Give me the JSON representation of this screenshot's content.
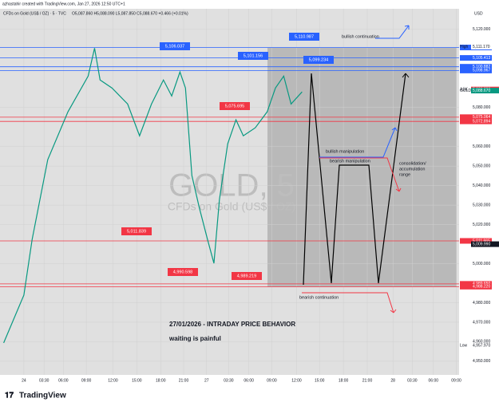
{
  "header": {
    "credit": "azhastahir created with TradingView.com, Jan 27, 2026 12:50 UTC+1",
    "symbol": "CFDs on Gold (US$ / OZ) · 5 · TVC",
    "ohlc": "O5,087.860 H5,088.090 L5,087.850 C5,088.670 +0.466 (+0.01%)",
    "currency": "USD",
    "brand": "TradingView"
  },
  "watermark": {
    "title": "GOLD, 5",
    "subtitle": "CFDs on Gold (US$ / OZ)"
  },
  "annotations": {
    "boxes": [
      "5,106.037",
      "5,110.987",
      "5,101.156",
      "5,099.234",
      "5,075.695",
      "5,011.839",
      "4,990.598",
      "4,989.219"
    ],
    "texts": [
      "bullish continuation",
      "bullish manipulation",
      "bearish manipulation",
      "consolidation/",
      "accumulation",
      "range",
      "bearish continuation",
      "27/01/2026 - INTRADAY PRICE BEHAVIOR",
      "waiting is painful"
    ]
  },
  "chart_data": {
    "type": "line",
    "color": "#089981",
    "x": [
      4,
      26,
      35,
      52,
      74,
      96,
      103,
      109,
      122,
      139,
      152,
      165,
      178,
      187,
      196,
      202,
      209,
      217,
      226,
      233,
      239,
      248,
      257,
      265,
      278,
      291,
      300,
      309,
      317,
      329
    ],
    "values": [
      4959.4,
      4983.9,
      5012.4,
      5053.3,
      5077.8,
      5096.1,
      5110.4,
      5094.1,
      5090.0,
      5081.8,
      5065.5,
      5081.8,
      5094.1,
      5085.9,
      5098.2,
      5090.0,
      5045.1,
      5028.8,
      5012.4,
      5000.2,
      5032.9,
      5061.4,
      5073.7,
      5065.5,
      5069.6,
      5077.8,
      5090.0,
      5096.1,
      5081.8,
      5088.0
    ],
    "xlim": [
      0,
      500
    ],
    "ylim": [
      4943,
      5131
    ],
    "xticks": [
      {
        "value": 26,
        "label": "24"
      },
      {
        "value": 48,
        "label": "03:30"
      },
      {
        "value": 69,
        "label": "06:00"
      },
      {
        "value": 94,
        "label": "09:00"
      },
      {
        "value": 123,
        "label": "12:00"
      },
      {
        "value": 149,
        "label": "15:00"
      },
      {
        "value": 175,
        "label": "18:00"
      },
      {
        "value": 200,
        "label": "21:00"
      },
      {
        "value": 225,
        "label": "27"
      },
      {
        "value": 249,
        "label": "03:30"
      },
      {
        "value": 271,
        "label": "06:00"
      },
      {
        "value": 296,
        "label": "09:00"
      },
      {
        "value": 323,
        "label": "12:00"
      },
      {
        "value": 348,
        "label": "15:00"
      },
      {
        "value": 374,
        "label": "18:00"
      },
      {
        "value": 400,
        "label": "21:00"
      },
      {
        "value": 428,
        "label": "28"
      },
      {
        "value": 449,
        "label": "03:30"
      },
      {
        "value": 472,
        "label": "06:00"
      },
      {
        "value": 497,
        "label": "09:00"
      }
    ],
    "yticks": [
      {
        "value": 5120,
        "label": "5,120.000"
      },
      {
        "value": 5080,
        "label": "5,080.000"
      },
      {
        "value": 5060,
        "label": "5,060.000"
      },
      {
        "value": 5050,
        "label": "5,050.000"
      },
      {
        "value": 5040,
        "label": "5,040.000"
      },
      {
        "value": 5030,
        "label": "5,030.000"
      },
      {
        "value": 5020,
        "label": "5,020.000"
      },
      {
        "value": 5000,
        "label": "5,000.000"
      },
      {
        "value": 4980,
        "label": "4,980.000"
      },
      {
        "value": 4970,
        "label": "4,970.000"
      },
      {
        "value": 4960,
        "label": "4,960.000"
      },
      {
        "value": 4950,
        "label": "4,950.000"
      }
    ],
    "grid": true,
    "levels": [
      {
        "value": 5110.762,
        "label": "5,110.762",
        "color": "#2962ff"
      },
      {
        "value": 5105.413,
        "label": "5,105.413",
        "color": "#2962ff"
      },
      {
        "value": 5100.882,
        "label": "5,100.882",
        "color": "#2962ff"
      },
      {
        "value": 5098.967,
        "label": "5,098.967",
        "color": "#2962ff"
      },
      {
        "value": 5075.064,
        "label": "5,075.064",
        "color": "#f23645"
      },
      {
        "value": 5072.894,
        "label": "5,072.894",
        "color": "#f23645"
      },
      {
        "value": 5011.665,
        "label": "5,011.665",
        "color": "#f23645"
      },
      {
        "value": 4989.65,
        "label": "4,989.650",
        "color": "#f23645"
      },
      {
        "value": 4988.22,
        "label": "4,988.220",
        "color": "#f23645"
      }
    ],
    "markers": [
      {
        "value": 5111.17,
        "label": "5,111.170",
        "tag": "High",
        "color": "#ffffff"
      },
      {
        "value": 5089.23,
        "label": "5,089.230",
        "tag": "ASK",
        "color": "#f23645"
      },
      {
        "value": 5088.67,
        "label": "5,088.670",
        "tag": "GOLD",
        "color": "#089981"
      },
      {
        "value": 5009.99,
        "label": "5,009.990",
        "tag": "",
        "color": "#131722"
      },
      {
        "value": 4957.97,
        "label": "4,957.970",
        "tag": "Low",
        "color": "#ffffff"
      }
    ]
  }
}
